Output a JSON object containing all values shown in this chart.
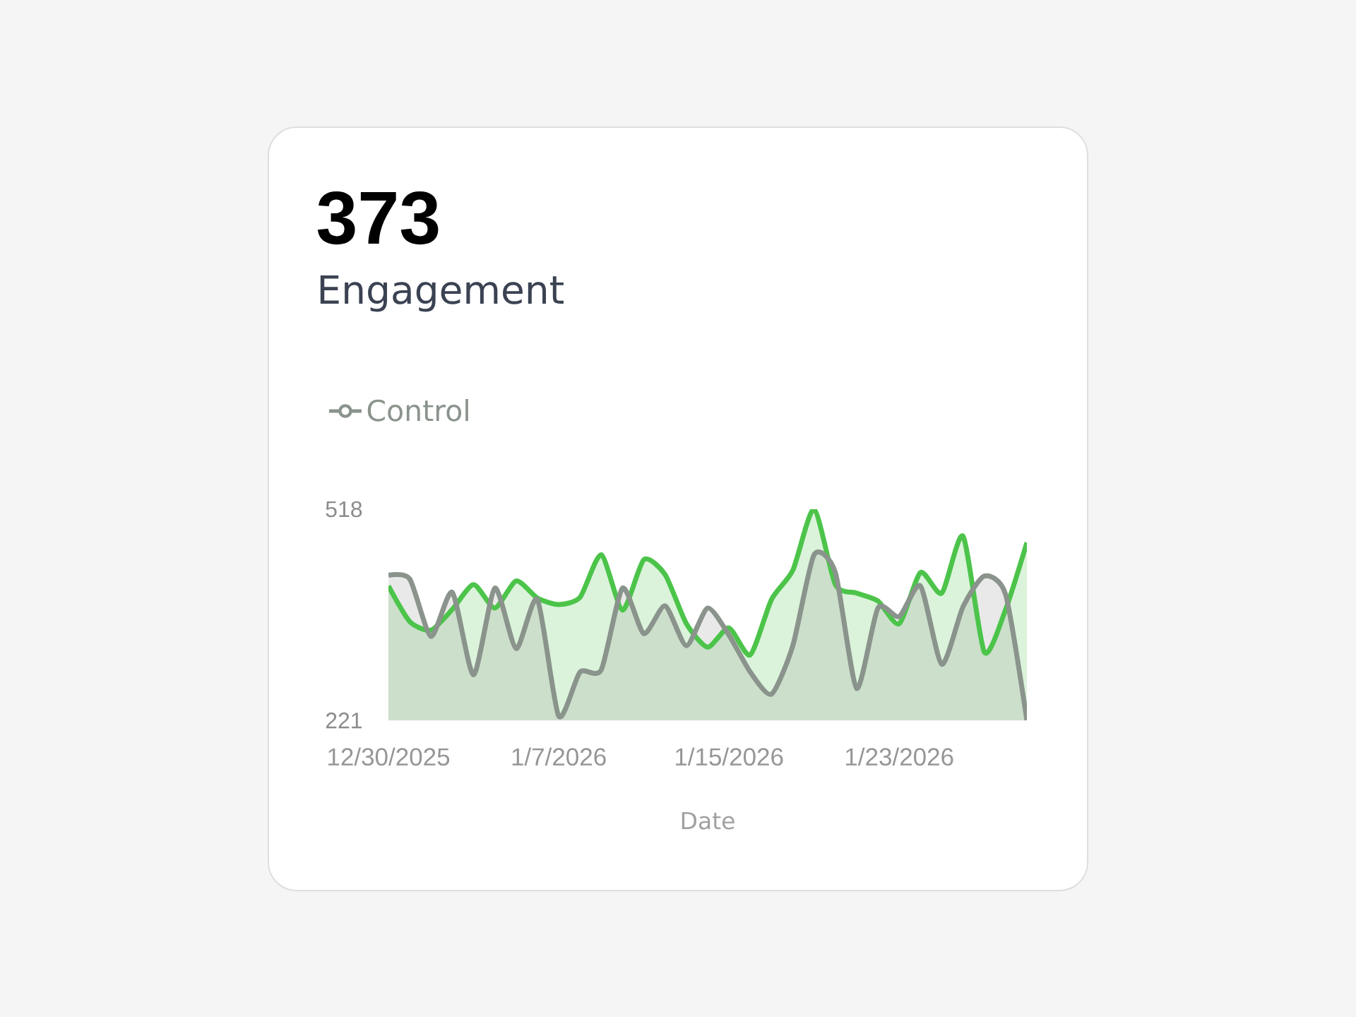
{
  "chart_data": {
    "type": "area",
    "title": "373",
    "subtitle": "Engagement",
    "xlabel": "Date",
    "x": [
      "2025-12-30",
      "2025-12-31",
      "2026-01-01",
      "2026-01-02",
      "2026-01-03",
      "2026-01-04",
      "2026-01-05",
      "2026-01-06",
      "2026-01-07",
      "2026-01-08",
      "2026-01-09",
      "2026-01-10",
      "2026-01-11",
      "2026-01-12",
      "2026-01-13",
      "2026-01-14",
      "2026-01-15",
      "2026-01-16",
      "2026-01-17",
      "2026-01-18",
      "2026-01-19",
      "2026-01-20",
      "2026-01-21",
      "2026-01-22",
      "2026-01-23",
      "2026-01-24",
      "2026-01-25",
      "2026-01-26",
      "2026-01-27",
      "2026-01-28",
      "2026-01-29"
    ],
    "series": [
      {
        "color": "#4cc44a",
        "values": [
          410,
          360,
          348,
          377,
          412,
          379,
          417,
          393,
          384,
          394,
          454,
          376,
          447,
          426,
          357,
          324,
          351,
          313,
          391,
          432,
          518,
          412,
          400,
          389,
          357,
          429,
          400,
          480,
          317,
          377,
          471
        ]
      },
      {
        "name": "Control",
        "color": "#8a938c",
        "values": [
          425,
          420,
          339,
          401,
          285,
          407,
          322,
          391,
          227,
          289,
          292,
          407,
          343,
          382,
          326,
          379,
          341,
          289,
          258,
          326,
          454,
          429,
          266,
          379,
          367,
          410,
          300,
          381,
          424,
          398,
          221
        ]
      }
    ],
    "xlim": [
      "2025-12-30",
      "2026-01-29"
    ],
    "xticks": [
      {
        "value": "2025-12-30",
        "label": "12/30/2025"
      },
      {
        "value": "2026-01-07",
        "label": "1/7/2026"
      },
      {
        "value": "2026-01-15",
        "label": "1/15/2026"
      },
      {
        "value": "2026-01-23",
        "label": "1/23/2026"
      }
    ],
    "ylim": [
      221,
      518
    ],
    "yticks": [
      221,
      518
    ],
    "legend": "top left"
  }
}
